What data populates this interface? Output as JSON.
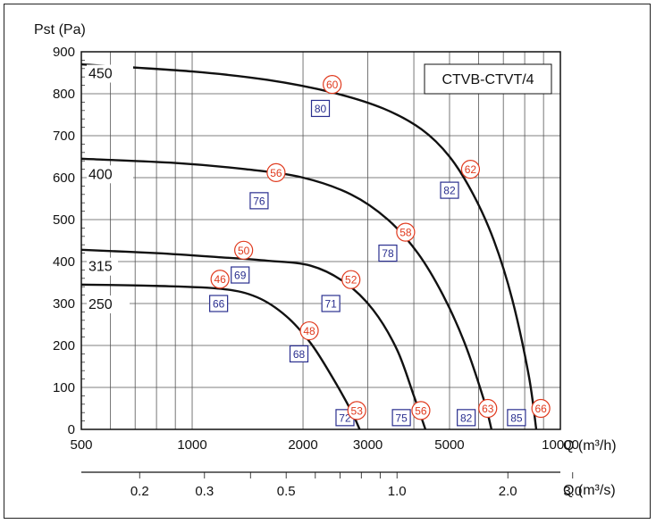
{
  "chart_data": {
    "type": "line",
    "title": "CTVB-CTVT/4",
    "ylabel": "Pst (Pa)",
    "xlabel_primary": "Q (m³/h)",
    "xlabel_secondary": "Q (m³/s)",
    "x_scale": "log",
    "xlim": [
      500,
      10000
    ],
    "ylim": [
      0,
      900
    ],
    "grid": true,
    "y_ticks": [
      "0",
      "100",
      "200",
      "300",
      "400",
      "500",
      "600",
      "700",
      "800",
      "900"
    ],
    "x_ticks": [
      "500",
      "1000",
      "2000",
      "3000",
      "5000",
      "10000"
    ],
    "x2_ticks": [
      "0.2",
      "0.3",
      "0.5",
      "1.0",
      "2.0",
      "3.0"
    ],
    "series": [
      {
        "name": "250",
        "x": [
          500,
          800,
          1200,
          1500,
          1800,
          2100,
          2400,
          2700,
          2850
        ],
        "y": [
          345,
          342,
          335,
          315,
          270,
          205,
          125,
          45,
          0
        ]
      },
      {
        "name": "315",
        "x": [
          500,
          800,
          1200,
          1600,
          2100,
          2600,
          3100,
          3600,
          4000,
          4300
        ],
        "y": [
          428,
          420,
          410,
          402,
          390,
          350,
          285,
          190,
          80,
          0
        ]
      },
      {
        "name": "400",
        "x": [
          500,
          900,
          1400,
          2000,
          2700,
          3400,
          4100,
          4800,
          5500,
          6200,
          6500
        ],
        "y": [
          645,
          635,
          620,
          600,
          560,
          500,
          420,
          320,
          205,
          70,
          0
        ]
      },
      {
        "name": "450",
        "x": [
          500,
          1000,
          1600,
          2400,
          3300,
          4200,
          5000,
          5800,
          6600,
          7400,
          8200,
          8600
        ],
        "y": [
          870,
          853,
          833,
          803,
          765,
          715,
          650,
          560,
          450,
          310,
          130,
          0
        ]
      }
    ],
    "efficiency_labels": [
      {
        "text": "80",
        "x": 2230,
        "y": 765
      },
      {
        "text": "82",
        "x": 5000,
        "y": 570
      },
      {
        "text": "76",
        "x": 1520,
        "y": 545
      },
      {
        "text": "78",
        "x": 3400,
        "y": 420
      },
      {
        "text": "69",
        "x": 1350,
        "y": 368
      },
      {
        "text": "71",
        "x": 2380,
        "y": 300
      },
      {
        "text": "66",
        "x": 1180,
        "y": 300
      },
      {
        "text": "68",
        "x": 1950,
        "y": 180
      },
      {
        "text": "72",
        "x": 2600,
        "y": 28
      },
      {
        "text": "75",
        "x": 3700,
        "y": 28
      },
      {
        "text": "82",
        "x": 5550,
        "y": 28
      },
      {
        "text": "85",
        "x": 7600,
        "y": 28
      }
    ],
    "sound_labels": [
      {
        "text": "60",
        "x": 2400,
        "y": 822
      },
      {
        "text": "62",
        "x": 5700,
        "y": 620
      },
      {
        "text": "56",
        "x": 1690,
        "y": 612
      },
      {
        "text": "58",
        "x": 3800,
        "y": 470
      },
      {
        "text": "50",
        "x": 1380,
        "y": 427
      },
      {
        "text": "52",
        "x": 2700,
        "y": 357
      },
      {
        "text": "46",
        "x": 1190,
        "y": 358
      },
      {
        "text": "48",
        "x": 2080,
        "y": 235
      },
      {
        "text": "53",
        "x": 2800,
        "y": 45
      },
      {
        "text": "56",
        "x": 4180,
        "y": 45
      },
      {
        "text": "63",
        "x": 6350,
        "y": 50
      },
      {
        "text": "66",
        "x": 8850,
        "y": 50
      }
    ]
  }
}
